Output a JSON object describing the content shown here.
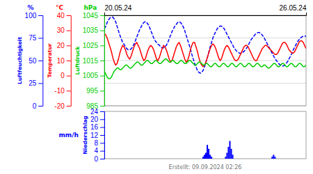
{
  "chart_data": [
    {
      "type": "line",
      "ylabel": "Luftfeuchtigkeit",
      "yunit": "%",
      "color": "#0000ff",
      "line_style": "dashed",
      "xlim": [
        0,
        143
      ],
      "xticks": [
        {
          "value": 0,
          "label": "20.05.24"
        },
        {
          "value": 143,
          "label": "26.05.24"
        }
      ],
      "ylim": [
        0,
        100
      ],
      "yticks": [
        100,
        75,
        50,
        25,
        0
      ],
      "grid": true,
      "values": [
        85,
        88,
        92,
        95,
        97,
        98,
        98,
        96,
        93,
        88,
        83,
        78,
        74,
        70,
        68,
        65,
        63,
        62,
        62,
        63,
        65,
        68,
        72,
        76,
        80,
        84,
        87,
        90,
        92,
        93,
        92,
        90,
        87,
        83,
        79,
        75,
        72,
        70,
        68,
        67,
        65,
        64,
        64,
        65,
        67,
        70,
        74,
        78,
        82,
        85,
        88,
        90,
        92,
        93,
        92,
        90,
        87,
        83,
        78,
        73,
        68,
        63,
        57,
        52,
        47,
        43,
        39,
        37,
        36,
        37,
        39,
        43,
        48,
        53,
        59,
        65,
        70,
        75,
        79,
        82,
        85,
        87,
        88,
        88,
        87,
        85,
        82,
        79,
        76,
        73,
        70,
        67,
        64,
        62,
        60,
        59,
        58,
        58,
        59,
        60,
        62,
        64,
        67,
        70,
        73,
        75,
        77,
        79,
        80,
        81,
        81,
        80,
        78,
        76,
        73,
        70,
        67,
        64,
        61,
        58,
        55,
        52,
        50,
        48,
        46,
        45,
        44,
        44,
        45,
        47,
        49,
        52,
        55,
        58,
        62,
        65,
        68,
        71,
        73,
        75,
        76,
        77,
        77,
        77
      ]
    },
    {
      "type": "line",
      "ylabel": "Temperatur",
      "yunit": "°C",
      "color": "#ff0000",
      "line_style": "solid",
      "xlim": [
        0,
        143
      ],
      "tick_labels": "y",
      "ylim": [
        -20,
        40
      ],
      "yticks": [
        40,
        30,
        20,
        10,
        0,
        -10,
        -20
      ],
      "values": [
        28,
        27,
        25,
        22,
        19,
        16,
        12,
        9,
        7,
        8,
        11,
        15,
        18,
        20,
        19,
        17,
        14,
        12,
        11,
        13,
        16,
        19,
        21,
        22,
        20,
        18,
        15,
        12,
        10,
        11,
        14,
        17,
        19,
        20,
        19,
        17,
        14,
        11,
        10,
        12,
        15,
        18,
        20,
        19,
        17,
        14,
        11,
        9,
        10,
        13,
        16,
        19,
        21,
        22,
        20,
        17,
        14,
        11,
        9,
        10,
        13,
        17,
        20,
        22,
        22,
        19,
        16,
        12,
        9,
        7,
        6,
        7,
        9,
        12,
        15,
        18,
        20,
        21,
        20,
        18,
        15,
        12,
        10,
        11,
        14,
        17,
        19,
        20,
        19,
        17,
        15,
        13,
        11,
        10,
        10,
        11,
        13,
        15,
        17,
        19,
        20,
        20,
        19,
        17,
        15,
        13,
        11,
        10,
        10,
        12,
        14,
        16,
        18,
        19,
        20,
        20,
        19,
        18,
        17,
        16,
        15,
        14,
        14,
        15,
        17,
        19,
        21,
        22,
        22,
        21,
        19,
        17,
        16,
        15,
        15,
        16,
        18,
        20,
        22,
        23,
        23,
        22,
        20,
        18
      ]
    },
    {
      "type": "line",
      "ylabel": "Luftdruck",
      "yunit": "hPa",
      "color": "#00cc00",
      "line_style": "solid",
      "xlim": [
        0,
        143
      ],
      "tick_labels": "y",
      "ylim": [
        985,
        1045
      ],
      "yticks": [
        1045,
        1035,
        1025,
        1015,
        1005,
        995,
        985
      ],
      "values": [
        1008,
        1006,
        1004,
        1003,
        1003,
        1004,
        1006,
        1008,
        1009,
        1010,
        1010,
        1009,
        1009,
        1010,
        1011,
        1012,
        1012,
        1011,
        1010,
        1010,
        1011,
        1012,
        1013,
        1014,
        1014,
        1013,
        1012,
        1012,
        1013,
        1014,
        1015,
        1015,
        1014,
        1013,
        1013,
        1014,
        1015,
        1015,
        1014,
        1013,
        1013,
        1014,
        1015,
        1016,
        1016,
        1015,
        1014,
        1014,
        1015,
        1015,
        1014,
        1013,
        1013,
        1014,
        1015,
        1015,
        1014,
        1013,
        1013,
        1014,
        1015,
        1015,
        1014,
        1013,
        1012,
        1012,
        1013,
        1014,
        1014,
        1013,
        1012,
        1012,
        1013,
        1013,
        1012,
        1011,
        1011,
        1012,
        1013,
        1013,
        1012,
        1011,
        1011,
        1012,
        1013,
        1013,
        1012,
        1011,
        1011,
        1012,
        1013,
        1013,
        1012,
        1011,
        1011,
        1012,
        1013,
        1013,
        1012,
        1011,
        1011,
        1012,
        1013,
        1013,
        1012,
        1011,
        1011,
        1012,
        1013,
        1013,
        1012,
        1011,
        1011,
        1012,
        1012,
        1011,
        1010,
        1010,
        1011,
        1012,
        1013,
        1013,
        1012,
        1011,
        1011,
        1012,
        1013,
        1013,
        1012,
        1011,
        1011,
        1012,
        1013,
        1013,
        1012,
        1011,
        1011,
        1012,
        1013,
        1013,
        1012,
        1011,
        1011,
        1012
      ]
    },
    {
      "type": "bar",
      "ylabel": "Niederschlag",
      "yunit": "mm/h",
      "color": "#0000ff",
      "annotation": "Erstellt: 09.09.2024 02:26",
      "xlim": [
        0,
        143
      ],
      "tick_labels": "y",
      "ylim": [
        0,
        24
      ],
      "yticks": [
        24,
        20,
        16,
        12,
        8,
        4,
        0
      ],
      "values": [
        0,
        0,
        0,
        0,
        0,
        0,
        0,
        0,
        0,
        0,
        0,
        0,
        0,
        0,
        0,
        0,
        0,
        0,
        0,
        0,
        0,
        0,
        0,
        0,
        0,
        0,
        0,
        0,
        0,
        0,
        0,
        0,
        0,
        0,
        0,
        0,
        0,
        0,
        0,
        0,
        0,
        0,
        0,
        0,
        0,
        0,
        0,
        0,
        0,
        0,
        0,
        0,
        0,
        0,
        0,
        0,
        0,
        0,
        0,
        0,
        0,
        0,
        0,
        0,
        0,
        0,
        0,
        0,
        0,
        0,
        1,
        2,
        3,
        7,
        5,
        2,
        1,
        0,
        0,
        0,
        0,
        0,
        0,
        0,
        0,
        0,
        1,
        3,
        6,
        9,
        5,
        2,
        0,
        0,
        0,
        0,
        0,
        0,
        0,
        0,
        0,
        0,
        0,
        0,
        0,
        0,
        0,
        0,
        0,
        0,
        0,
        0,
        0,
        0,
        0,
        0,
        0,
        0,
        0,
        1,
        2,
        1,
        0,
        0,
        0,
        0,
        0,
        0,
        0,
        0,
        0,
        0,
        0,
        0,
        0,
        0,
        0,
        0,
        0,
        0,
        0,
        0,
        0,
        0
      ]
    }
  ]
}
